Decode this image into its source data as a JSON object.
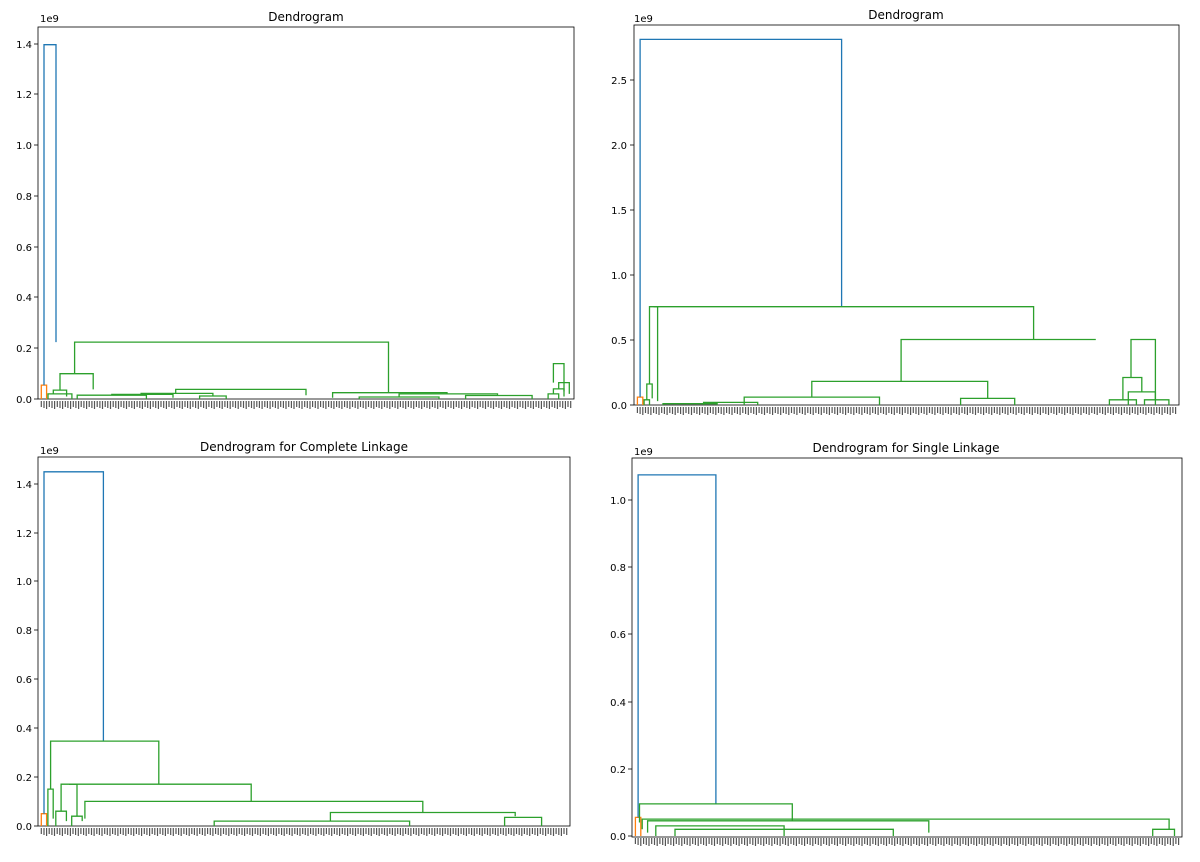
{
  "chart_data": [
    {
      "type": "dendrogram",
      "title": "Dendrogram",
      "offset_text": "1e9",
      "ylim": [
        0,
        1.47
      ],
      "y_ticks": [
        0.0,
        0.2,
        0.4,
        0.6,
        0.8,
        1.0,
        1.2,
        1.4
      ],
      "y_tick_labels": [
        "0.0",
        "0.2",
        "0.4",
        "0.6",
        "0.8",
        "1.0",
        "1.2",
        "1.4"
      ],
      "n_leaves": 200,
      "links": [
        {
          "x": [
            0.5,
            0.5,
            2.5,
            2.5
          ],
          "y": [
            0,
            0.055,
            0.055,
            0
          ],
          "color": "#ff7f0e"
        },
        {
          "x": [
            1.5,
            1.5,
            6,
            6
          ],
          "y": [
            0.055,
            1.4,
            1.4,
            0.225
          ],
          "color": "#1f77b4"
        },
        {
          "x": [
            3,
            3,
            12,
            12
          ],
          "y": [
            0,
            0.02,
            0.02,
            0
          ],
          "color": "#2ca02c"
        },
        {
          "x": [
            5,
            5,
            10,
            10
          ],
          "y": [
            0.02,
            0.035,
            0.035,
            0.01
          ],
          "color": "#2ca02c"
        },
        {
          "x": [
            7.5,
            7.5,
            20,
            20
          ],
          "y": [
            0.035,
            0.1,
            0.1,
            0.038
          ],
          "color": "#2ca02c"
        },
        {
          "x": [
            14,
            14,
            40,
            40
          ],
          "y": [
            0,
            0.015,
            0.015,
            0
          ],
          "color": "#2ca02c"
        },
        {
          "x": [
            27,
            27,
            50,
            50
          ],
          "y": [
            0.015,
            0.018,
            0.018,
            0.005
          ],
          "color": "#2ca02c"
        },
        {
          "x": [
            60,
            60,
            70,
            70
          ],
          "y": [
            0,
            0.012,
            0.012,
            0
          ],
          "color": "#2ca02c"
        },
        {
          "x": [
            38,
            38,
            65,
            65
          ],
          "y": [
            0.018,
            0.022,
            0.022,
            0.012
          ],
          "color": "#2ca02c"
        },
        {
          "x": [
            51,
            51,
            100,
            100
          ],
          "y": [
            0.022,
            0.038,
            0.038,
            0.015
          ],
          "color": "#2ca02c"
        },
        {
          "x": [
            120,
            120,
            150,
            150
          ],
          "y": [
            0,
            0.008,
            0.008,
            0
          ],
          "color": "#2ca02c"
        },
        {
          "x": [
            160,
            160,
            185,
            185
          ],
          "y": [
            0,
            0.014,
            0.014,
            0
          ],
          "color": "#2ca02c"
        },
        {
          "x": [
            135,
            135,
            172,
            172
          ],
          "y": [
            0.008,
            0.02,
            0.02,
            0.014
          ],
          "color": "#2ca02c"
        },
        {
          "x": [
            110,
            110,
            153,
            153
          ],
          "y": [
            0.005,
            0.025,
            0.025,
            0.02
          ],
          "color": "#2ca02c"
        },
        {
          "x": [
            13,
            13,
            131,
            131
          ],
          "y": [
            0.1,
            0.225,
            0.225,
            0.025
          ],
          "color": "#2ca02c"
        },
        {
          "x": [
            191,
            191,
            195,
            195
          ],
          "y": [
            0,
            0.02,
            0.02,
            0
          ],
          "color": "#2ca02c"
        },
        {
          "x": [
            193,
            193,
            197,
            197
          ],
          "y": [
            0.02,
            0.04,
            0.04,
            0.01
          ],
          "color": "#2ca02c"
        },
        {
          "x": [
            195,
            195,
            199,
            199
          ],
          "y": [
            0.04,
            0.065,
            0.065,
            0.02
          ],
          "color": "#2ca02c"
        },
        {
          "x": [
            193,
            193,
            197,
            197
          ],
          "y": [
            0.065,
            0.14,
            0.14,
            0.03
          ],
          "color": "#2ca02c"
        }
      ]
    },
    {
      "type": "dendrogram",
      "title": "Dendrogram",
      "offset_text": "1e9",
      "ylim": [
        0,
        2.9
      ],
      "y_ticks": [
        0.0,
        0.5,
        1.0,
        1.5,
        2.0,
        2.5
      ],
      "y_tick_labels": [
        "0.0",
        "0.5",
        "1.0",
        "1.5",
        "2.0",
        "2.5"
      ],
      "n_leaves": 200,
      "links": [
        {
          "x": [
            0.5,
            0.5,
            2.5,
            2.5
          ],
          "y": [
            0,
            0.06,
            0.06,
            0
          ],
          "color": "#ff7f0e"
        },
        {
          "x": [
            1.5,
            1.5,
            76,
            76
          ],
          "y": [
            0.06,
            2.79,
            2.79,
            0.75
          ],
          "color": "#1f77b4"
        },
        {
          "x": [
            3,
            3,
            5,
            5
          ],
          "y": [
            0,
            0.04,
            0.04,
            0
          ],
          "color": "#2ca02c"
        },
        {
          "x": [
            4,
            4,
            6,
            6
          ],
          "y": [
            0.04,
            0.16,
            0.16,
            0.05
          ],
          "color": "#2ca02c"
        },
        {
          "x": [
            5,
            5,
            8,
            8
          ],
          "y": [
            0.16,
            0.75,
            0.75,
            0.03
          ],
          "color": "#2ca02c"
        },
        {
          "x": [
            10,
            10,
            30,
            30
          ],
          "y": [
            0,
            0.01,
            0.01,
            0
          ],
          "color": "#2ca02c"
        },
        {
          "x": [
            25,
            25,
            45,
            45
          ],
          "y": [
            0,
            0.02,
            0.02,
            0
          ],
          "color": "#2ca02c"
        },
        {
          "x": [
            40,
            40,
            90,
            90
          ],
          "y": [
            0,
            0.06,
            0.06,
            0
          ],
          "color": "#2ca02c"
        },
        {
          "x": [
            120,
            120,
            140,
            140
          ],
          "y": [
            0,
            0.05,
            0.05,
            0
          ],
          "color": "#2ca02c"
        },
        {
          "x": [
            65,
            65,
            130,
            130
          ],
          "y": [
            0.06,
            0.18,
            0.18,
            0.05
          ],
          "color": "#2ca02c"
        },
        {
          "x": [
            175,
            175,
            185,
            185
          ],
          "y": [
            0,
            0.04,
            0.04,
            0
          ],
          "color": "#2ca02c"
        },
        {
          "x": [
            182,
            182,
            192,
            192
          ],
          "y": [
            0,
            0.1,
            0.1,
            0
          ],
          "color": "#2ca02c"
        },
        {
          "x": [
            180,
            180,
            187,
            187
          ],
          "y": [
            0.04,
            0.21,
            0.21,
            0.1
          ],
          "color": "#2ca02c"
        },
        {
          "x": [
            188,
            188,
            197,
            197
          ],
          "y": [
            0,
            0.04,
            0.04,
            0
          ],
          "color": "#2ca02c"
        },
        {
          "x": [
            183,
            183,
            192,
            192
          ],
          "y": [
            0.21,
            0.5,
            0.5,
            0.04
          ],
          "color": "#2ca02c"
        },
        {
          "x": [
            98,
            98,
            170,
            170
          ],
          "y": [
            0.18,
            0.5,
            0.5,
            0.5
          ],
          "color": "#2ca02c"
        },
        {
          "x": [
            6.5,
            6.5,
            147,
            147
          ],
          "y": [
            0.75,
            0.75,
            0.75,
            0.5
          ],
          "color": "#2ca02c"
        }
      ]
    },
    {
      "type": "dendrogram",
      "title": "Dendrogram for Complete Linkage",
      "offset_text": "1e9",
      "ylim": [
        0,
        1.5
      ],
      "y_ticks": [
        0.0,
        0.2,
        0.4,
        0.6,
        0.8,
        1.0,
        1.2,
        1.4
      ],
      "y_tick_labels": [
        "0.0",
        "0.2",
        "0.4",
        "0.6",
        "0.8",
        "1.0",
        "1.2",
        "1.4"
      ],
      "n_leaves": 200,
      "links": [
        {
          "x": [
            0.5,
            0.5,
            2.5,
            2.5
          ],
          "y": [
            0,
            0.05,
            0.05,
            0
          ],
          "color": "#ff7f0e"
        },
        {
          "x": [
            1.5,
            1.5,
            24,
            24
          ],
          "y": [
            0.05,
            1.44,
            1.44,
            0.345
          ],
          "color": "#1f77b4"
        },
        {
          "x": [
            3,
            3,
            5,
            5
          ],
          "y": [
            0,
            0.15,
            0.15,
            0.03
          ],
          "color": "#2ca02c"
        },
        {
          "x": [
            6,
            6,
            10,
            10
          ],
          "y": [
            0,
            0.06,
            0.06,
            0.02
          ],
          "color": "#2ca02c"
        },
        {
          "x": [
            12,
            12,
            16,
            16
          ],
          "y": [
            0,
            0.04,
            0.04,
            0.02
          ],
          "color": "#2ca02c"
        },
        {
          "x": [
            8,
            8,
            14,
            14
          ],
          "y": [
            0.06,
            0.17,
            0.17,
            0.04
          ],
          "color": "#2ca02c"
        },
        {
          "x": [
            11,
            11,
            80,
            80
          ],
          "y": [
            0.17,
            0.17,
            0.17,
            0.1
          ],
          "color": "#2ca02c"
        },
        {
          "x": [
            17,
            17,
            145,
            145
          ],
          "y": [
            0.03,
            0.1,
            0.1,
            0.055
          ],
          "color": "#2ca02c"
        },
        {
          "x": [
            110,
            110,
            180,
            180
          ],
          "y": [
            0.02,
            0.055,
            0.055,
            0.04
          ],
          "color": "#2ca02c"
        },
        {
          "x": [
            176,
            176,
            190,
            190
          ],
          "y": [
            0,
            0.035,
            0.035,
            0
          ],
          "color": "#2ca02c"
        },
        {
          "x": [
            66,
            66,
            140,
            140
          ],
          "y": [
            0,
            0.02,
            0.02,
            0
          ],
          "color": "#2ca02c"
        },
        {
          "x": [
            4,
            4,
            45,
            45
          ],
          "y": [
            0.15,
            0.345,
            0.345,
            0.17
          ],
          "color": "#2ca02c"
        }
      ]
    },
    {
      "type": "dendrogram",
      "title": "Dendrogram for Single Linkage",
      "offset_text": "1e9",
      "ylim": [
        0,
        1.12
      ],
      "y_ticks": [
        0.0,
        0.2,
        0.4,
        0.6,
        0.8,
        1.0
      ],
      "y_tick_labels": [
        "0.0",
        "0.2",
        "0.4",
        "0.6",
        "0.8",
        "1.0"
      ],
      "n_leaves": 200,
      "links": [
        {
          "x": [
            0.5,
            0.5,
            2.5,
            2.5
          ],
          "y": [
            0,
            0.055,
            0.055,
            0
          ],
          "color": "#ff7f0e"
        },
        {
          "x": [
            1.5,
            1.5,
            30,
            30
          ],
          "y": [
            0.055,
            1.07,
            1.07,
            0.095
          ],
          "color": "#1f77b4"
        },
        {
          "x": [
            2,
            2,
            58,
            58
          ],
          "y": [
            0.04,
            0.095,
            0.095,
            0.045
          ],
          "color": "#2ca02c"
        },
        {
          "x": [
            3,
            3,
            196,
            196
          ],
          "y": [
            0.02,
            0.05,
            0.05,
            0.02
          ],
          "color": "#2ca02c"
        },
        {
          "x": [
            5,
            5,
            108,
            108
          ],
          "y": [
            0.01,
            0.045,
            0.045,
            0.01
          ],
          "color": "#2ca02c"
        },
        {
          "x": [
            8,
            8,
            55,
            55
          ],
          "y": [
            0,
            0.03,
            0.03,
            0
          ],
          "color": "#2ca02c"
        },
        {
          "x": [
            15,
            15,
            95,
            95
          ],
          "y": [
            0,
            0.02,
            0.02,
            0
          ],
          "color": "#2ca02c"
        },
        {
          "x": [
            190,
            190,
            198,
            198
          ],
          "y": [
            0,
            0.02,
            0.02,
            0
          ],
          "color": "#2ca02c"
        }
      ]
    }
  ]
}
